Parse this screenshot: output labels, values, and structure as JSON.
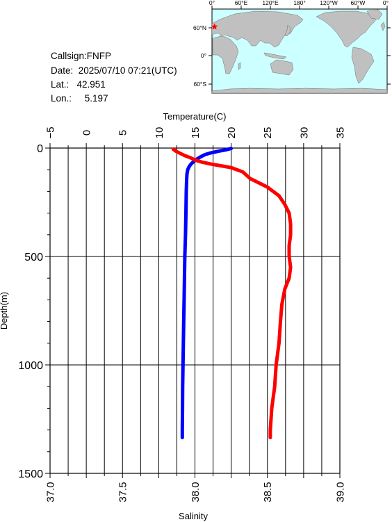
{
  "info": {
    "callsign_line": "Callsign:FNFP",
    "date_line": "Date:  2025/07/10 07:21(UTC)",
    "lat_line": "Lat.:   42.951",
    "lon_line": "Lon.:     5.197"
  },
  "map": {
    "top_labels": [
      "0°",
      "60°E",
      "120°E",
      "180°",
      "120°W",
      "60°W",
      "0°"
    ],
    "left_labels": [
      "60°N",
      "0°",
      "60°S"
    ],
    "ocean_color": "#ccffff",
    "land_color": "#c0c0c0",
    "marker_color": "#ff0000",
    "station": {
      "lat": 42.951,
      "lon": 5.197
    }
  },
  "chart_data": {
    "type": "line",
    "title": "",
    "temperature_axis": {
      "label": "Temperature(C)",
      "ticks": [
        "−5",
        "0",
        "5",
        "10",
        "15",
        "20",
        "25",
        "30",
        "35"
      ],
      "range": [
        -5,
        35
      ]
    },
    "salinity_axis": {
      "label": "Salinity",
      "ticks": [
        "37.0",
        "37.5",
        "38.0",
        "38.5",
        "39.0"
      ],
      "range": [
        37.0,
        39.0
      ]
    },
    "depth_axis": {
      "label": "Depth(m)",
      "ticks": [
        "0",
        "500",
        "1000",
        "1500"
      ],
      "range": [
        0,
        1500
      ],
      "inverted": true
    },
    "grid": true,
    "series": [
      {
        "color": "#0000ff",
        "axis": "temperature",
        "points": [
          [
            20.0,
            2
          ],
          [
            19.3,
            8
          ],
          [
            18.3,
            14
          ],
          [
            17.2,
            22
          ],
          [
            16.4,
            30
          ],
          [
            15.8,
            40
          ],
          [
            15.3,
            50
          ],
          [
            14.9,
            60
          ],
          [
            14.5,
            72
          ],
          [
            14.2,
            85
          ],
          [
            14.0,
            100
          ],
          [
            13.9,
            120
          ],
          [
            13.85,
            150
          ],
          [
            13.8,
            200
          ],
          [
            13.75,
            300
          ],
          [
            13.7,
            400
          ],
          [
            13.6,
            500
          ],
          [
            13.55,
            600
          ],
          [
            13.5,
            700
          ],
          [
            13.45,
            800
          ],
          [
            13.4,
            900
          ],
          [
            13.35,
            1000
          ],
          [
            13.3,
            1100
          ],
          [
            13.28,
            1200
          ],
          [
            13.25,
            1300
          ],
          [
            13.25,
            1335
          ]
        ]
      },
      {
        "color": "#ff0000",
        "axis": "salinity",
        "points": [
          [
            37.85,
            5
          ],
          [
            37.87,
            15
          ],
          [
            37.9,
            25
          ],
          [
            37.93,
            35
          ],
          [
            37.97,
            45
          ],
          [
            38.0,
            55
          ],
          [
            38.05,
            65
          ],
          [
            38.12,
            75
          ],
          [
            38.25,
            90
          ],
          [
            38.33,
            110
          ],
          [
            38.38,
            140
          ],
          [
            38.5,
            180
          ],
          [
            38.58,
            220
          ],
          [
            38.62,
            260
          ],
          [
            38.65,
            300
          ],
          [
            38.66,
            350
          ],
          [
            38.66,
            400
          ],
          [
            38.65,
            450
          ],
          [
            38.65,
            500
          ],
          [
            38.66,
            550
          ],
          [
            38.65,
            600
          ],
          [
            38.62,
            650
          ],
          [
            38.6,
            720
          ],
          [
            38.59,
            800
          ],
          [
            38.58,
            900
          ],
          [
            38.56,
            1000
          ],
          [
            38.55,
            1100
          ],
          [
            38.53,
            1200
          ],
          [
            38.52,
            1300
          ],
          [
            38.52,
            1335
          ]
        ]
      }
    ]
  }
}
